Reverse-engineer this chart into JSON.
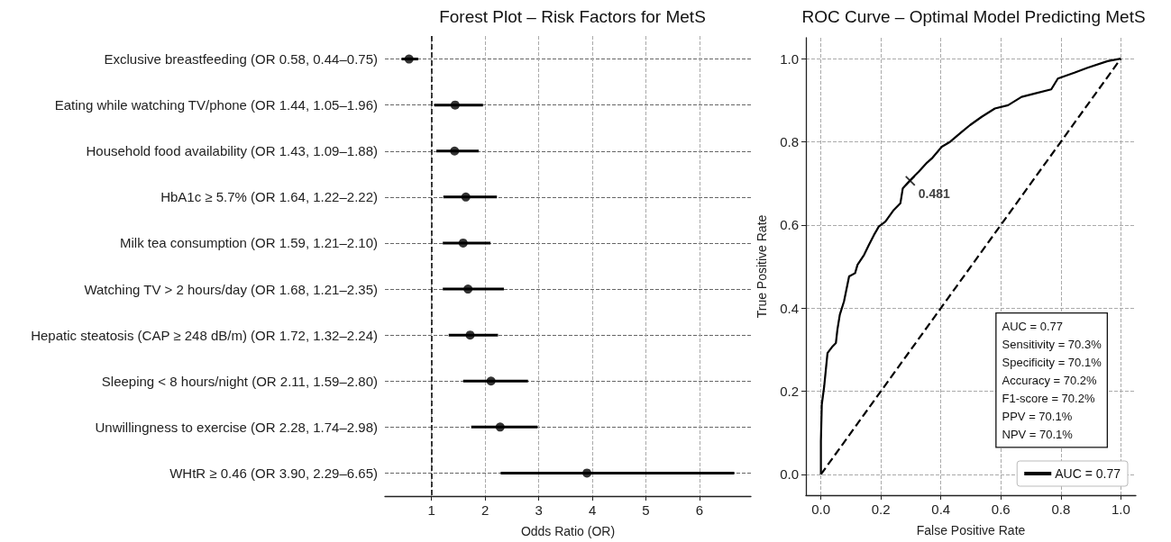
{
  "chart_data": [
    {
      "type": "scatter",
      "orientation": "horizontal",
      "title": "Forest Plot – Risk Factors for MetS",
      "xlabel": "Odds Ratio (OR)",
      "categories": [
        "Exclusive breastfeeding (OR 0.58, 0.44–0.75)",
        "Eating while watching TV/phone (OR 1.44, 1.05–1.96)",
        "Household food availability (OR 1.43, 1.09–1.88)",
        "HbA1c ≥ 5.7% (OR 1.64, 1.22–2.22)",
        "Milk tea consumption (OR 1.59, 1.21–2.10)",
        "Watching TV > 2 hours/day (OR 1.68, 1.21–2.35)",
        "Hepatic steatosis (CAP ≥ 248 dB/m) (OR 1.72, 1.32–2.24)",
        "Sleeping < 8 hours/night (OR 2.11, 1.59–2.80)",
        "Unwillingness to exercise (OR 2.28, 1.74–2.98)",
        "WHtR ≥ 0.46 (OR 3.90, 2.29–6.65)"
      ],
      "values": [
        0.58,
        1.44,
        1.43,
        1.64,
        1.59,
        1.68,
        1.72,
        2.11,
        2.28,
        3.9
      ],
      "errors": [
        [
          0.44,
          0.75
        ],
        [
          1.05,
          1.96
        ],
        [
          1.09,
          1.88
        ],
        [
          1.22,
          2.22
        ],
        [
          1.21,
          2.1
        ],
        [
          1.21,
          2.35
        ],
        [
          1.32,
          2.24
        ],
        [
          1.59,
          2.8
        ],
        [
          1.74,
          2.98
        ],
        [
          2.29,
          6.65
        ]
      ],
      "color": "#000000",
      "marker": "circle",
      "xlim": [
        0.13,
        6.96
      ],
      "xticks": [
        1,
        2,
        3,
        4,
        5,
        6
      ],
      "ref_lines": [
        {
          "axis": "x",
          "value": 1,
          "color": "#000000",
          "line_style": "dashed"
        }
      ],
      "grid": true,
      "legend": false
    },
    {
      "type": "line",
      "title": "ROC Curve – Optimal Model Predicting MetS",
      "xlabel": "False Positive Rate",
      "ylabel": "True Positive Rate",
      "series": [
        {
          "name": "AUC = 0.77",
          "color": "#000000",
          "line_style": "solid",
          "x": [
            0,
            0,
            0.003,
            0.011,
            0.022,
            0.039,
            0.05,
            0.055,
            0.063,
            0.077,
            0.094,
            0.114,
            0.122,
            0.144,
            0.16,
            0.177,
            0.193,
            0.215,
            0.243,
            0.265,
            0.273,
            0.298,
            0.326,
            0.354,
            0.37,
            0.403,
            0.431,
            0.47,
            0.497,
            0.536,
            0.58,
            0.624,
            0.669,
            0.713,
            0.768,
            0.79,
            0.845,
            0.889,
            0.956,
            1
          ],
          "values": [
            0,
            0.08,
            0.168,
            0.212,
            0.292,
            0.308,
            0.316,
            0.348,
            0.384,
            0.416,
            0.476,
            0.484,
            0.504,
            0.528,
            0.552,
            0.576,
            0.596,
            0.608,
            0.636,
            0.652,
            0.688,
            0.708,
            0.728,
            0.75,
            0.76,
            0.788,
            0.8,
            0.824,
            0.84,
            0.86,
            0.88,
            0.888,
            0.908,
            0.916,
            0.926,
            0.952,
            0.966,
            0.978,
            0.994,
            1
          ]
        },
        {
          "type": "line",
          "color": "#000000",
          "line_style": "dashed",
          "x": [
            0,
            1
          ],
          "values": [
            0,
            1
          ]
        },
        {
          "type": "scatter",
          "color": "#000000",
          "marker": "cross",
          "x": [
            0.298
          ],
          "values": [
            0.706
          ]
        }
      ],
      "annotations": [
        {
          "text": "0.481",
          "x": 0.298,
          "y": 0.706
        },
        "AUC = 0.77\nSensitivity = 70.3%\nSpecificity = 70.1%\nAccuracy = 70.2%\nF1-score = 70.2%\nPPV = 70.1%\nNPV = 70.1%"
      ],
      "xlim": [
        -0.05,
        1.05
      ],
      "ylim": [
        -0.05,
        1.05
      ],
      "xticks": [
        {
          "value": 0,
          "label": "0.0"
        },
        {
          "value": 0.2,
          "label": "0.2"
        },
        {
          "value": 0.4,
          "label": "0.4"
        },
        {
          "value": 0.6,
          "label": "0.6"
        },
        {
          "value": 0.8,
          "label": "0.8"
        },
        {
          "value": 1,
          "label": "1.0"
        }
      ],
      "yticks": [
        {
          "value": 0,
          "label": "0.0"
        },
        {
          "value": 0.2,
          "label": "0.2"
        },
        {
          "value": 0.4,
          "label": "0.4"
        },
        {
          "value": 0.6,
          "label": "0.6"
        },
        {
          "value": 0.8,
          "label": "0.8"
        },
        {
          "value": 1,
          "label": "1.0"
        }
      ],
      "grid": true,
      "legend": "bottom right",
      "marker": "none"
    }
  ]
}
